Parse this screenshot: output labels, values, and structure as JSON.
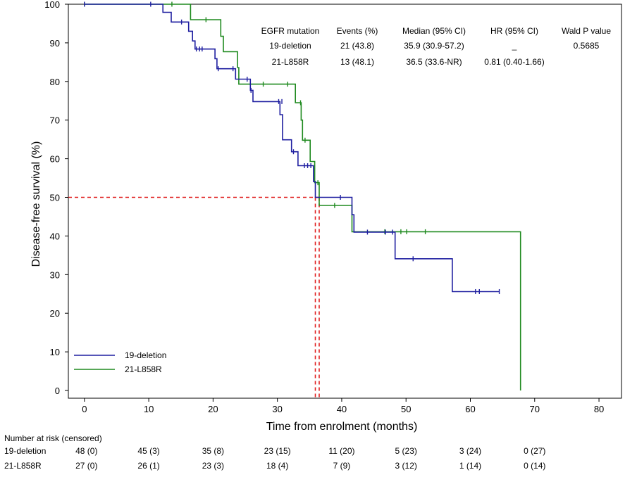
{
  "chart_data": {
    "type": "line",
    "subtype": "kaplan-meier",
    "xlabel": "Time from enrolment (months)",
    "ylabel": "Disease-free survival (%)",
    "xlim": [
      -2.5,
      83.5
    ],
    "ylim": [
      -2,
      100
    ],
    "xticks": [
      0,
      10,
      20,
      30,
      40,
      50,
      60,
      70,
      80
    ],
    "yticks": [
      0,
      10,
      20,
      30,
      40,
      50,
      60,
      70,
      80,
      90,
      100
    ],
    "grid": false,
    "legend_position": "bottom-left",
    "series": [
      {
        "name": "19-deletion",
        "color": "#1f1fa0",
        "steps": [
          [
            0,
            100
          ],
          [
            12.2,
            100
          ],
          [
            12.2,
            97.9
          ],
          [
            13.5,
            97.9
          ],
          [
            13.5,
            95.4
          ],
          [
            16.2,
            95.4
          ],
          [
            16.2,
            93.0
          ],
          [
            16.8,
            93.0
          ],
          [
            16.8,
            90.5
          ],
          [
            17.2,
            90.5
          ],
          [
            17.2,
            88.4
          ],
          [
            20.3,
            88.4
          ],
          [
            20.3,
            85.9
          ],
          [
            20.6,
            85.9
          ],
          [
            20.6,
            83.3
          ],
          [
            23.5,
            83.3
          ],
          [
            23.5,
            80.6
          ],
          [
            25.8,
            80.6
          ],
          [
            25.8,
            77.7
          ],
          [
            26.2,
            77.7
          ],
          [
            26.2,
            74.8
          ],
          [
            30.4,
            74.8
          ],
          [
            30.4,
            71.4
          ],
          [
            30.8,
            71.4
          ],
          [
            30.8,
            64.9
          ],
          [
            32.2,
            64.9
          ],
          [
            32.2,
            61.8
          ],
          [
            33.2,
            61.8
          ],
          [
            33.2,
            58.2
          ],
          [
            35.6,
            58.2
          ],
          [
            35.6,
            54.1
          ],
          [
            35.9,
            54.1
          ],
          [
            35.9,
            50.0
          ],
          [
            41.6,
            50.0
          ],
          [
            41.6,
            45.5
          ],
          [
            41.9,
            45.5
          ],
          [
            41.9,
            41.0
          ],
          [
            48.3,
            41.0
          ],
          [
            48.3,
            34.1
          ],
          [
            57.2,
            34.1
          ],
          [
            57.2,
            25.6
          ],
          [
            64.5,
            25.6
          ]
        ],
        "censor": [
          [
            0,
            100
          ],
          [
            10.3,
            100
          ],
          [
            15.1,
            95.4
          ],
          [
            17.4,
            88.4
          ],
          [
            17.9,
            88.4
          ],
          [
            18.3,
            88.4
          ],
          [
            20.8,
            83.3
          ],
          [
            23.1,
            83.3
          ],
          [
            25.3,
            80.6
          ],
          [
            25.9,
            77.7
          ],
          [
            30.2,
            74.8
          ],
          [
            30.7,
            74.8
          ],
          [
            32.5,
            61.8
          ],
          [
            34.2,
            58.2
          ],
          [
            34.7,
            58.2
          ],
          [
            35.2,
            58.2
          ],
          [
            39.8,
            50.0
          ],
          [
            44.0,
            41.0
          ],
          [
            46.8,
            41.0
          ],
          [
            47.9,
            41.0
          ],
          [
            51.1,
            34.1
          ],
          [
            60.8,
            25.6
          ],
          [
            61.4,
            25.6
          ],
          [
            64.5,
            25.6
          ]
        ]
      },
      {
        "name": "21-L858R",
        "color": "#1f8a1f",
        "steps": [
          [
            0,
            100
          ],
          [
            16.5,
            100
          ],
          [
            16.5,
            96.0
          ],
          [
            21.2,
            96.0
          ],
          [
            21.2,
            91.7
          ],
          [
            21.6,
            91.7
          ],
          [
            21.6,
            87.7
          ],
          [
            23.8,
            87.7
          ],
          [
            23.8,
            83.6
          ],
          [
            24.0,
            83.6
          ],
          [
            24.0,
            79.3
          ],
          [
            32.8,
            79.3
          ],
          [
            32.8,
            74.5
          ],
          [
            33.7,
            74.5
          ],
          [
            33.7,
            70.0
          ],
          [
            33.9,
            70.0
          ],
          [
            33.9,
            64.8
          ],
          [
            35.1,
            64.8
          ],
          [
            35.1,
            59.3
          ],
          [
            35.8,
            59.3
          ],
          [
            35.8,
            53.8
          ],
          [
            36.5,
            53.8
          ],
          [
            36.5,
            47.9
          ],
          [
            41.6,
            47.9
          ],
          [
            41.6,
            41.1
          ],
          [
            67.8,
            41.1
          ],
          [
            67.8,
            0
          ]
        ],
        "censor": [
          [
            0,
            100
          ],
          [
            13.6,
            100
          ],
          [
            18.9,
            96.0
          ],
          [
            27.8,
            79.3
          ],
          [
            31.6,
            79.3
          ],
          [
            33.6,
            74.5
          ],
          [
            34.3,
            64.8
          ],
          [
            36.3,
            53.8
          ],
          [
            38.9,
            47.9
          ],
          [
            46.7,
            41.1
          ],
          [
            49.2,
            41.1
          ],
          [
            50.1,
            41.1
          ],
          [
            53.0,
            41.1
          ]
        ]
      }
    ],
    "medians": [
      35.9,
      36.5
    ],
    "median_line_y": 50,
    "median_line_color": "#e02020",
    "stats_table": {
      "headers": [
        "EGFR mutation",
        "Events (%)",
        "Median (95% CI)",
        "HR (95% CI)",
        "Wald P value"
      ],
      "rows": [
        [
          "19-deletion",
          "21 (43.8)",
          "35.9 (30.9-57.2)",
          "_",
          "0.5685"
        ],
        [
          "21-L858R",
          "13 (48.1)",
          "36.5 (33.6-NR)",
          "0.81 (0.40-1.66)",
          ""
        ]
      ]
    },
    "risk_table": {
      "title": "Number at risk (censored)",
      "times": [
        0,
        10,
        20,
        30,
        40,
        50,
        60,
        70
      ],
      "rows": [
        {
          "label": "19-deletion",
          "values": [
            "48 (0)",
            "45 (3)",
            "35 (8)",
            "23 (15)",
            "11 (20)",
            "5 (23)",
            "3 (24)",
            "0 (27)"
          ]
        },
        {
          "label": "21-L858R",
          "values": [
            "27 (0)",
            "26 (1)",
            "23 (3)",
            "18 (4)",
            "7 (9)",
            "3 (12)",
            "1 (14)",
            "0 (14)"
          ]
        }
      ]
    }
  }
}
